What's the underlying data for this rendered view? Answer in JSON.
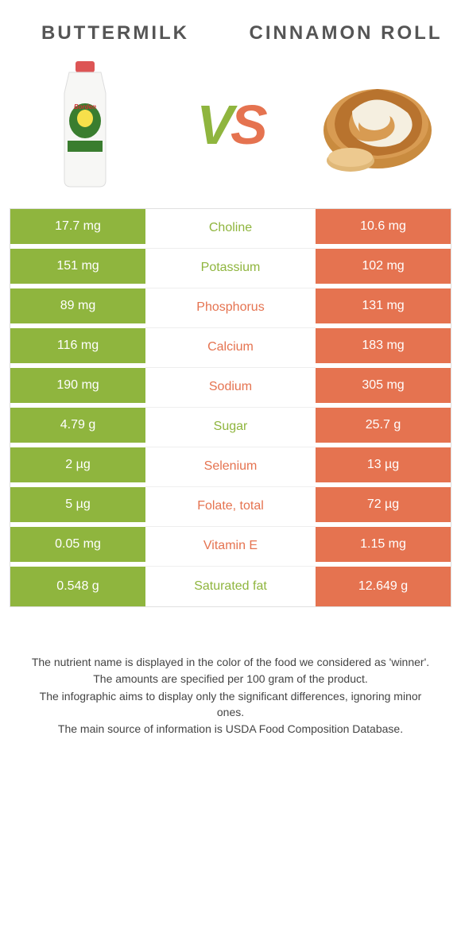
{
  "colors": {
    "green": "#8fb53e",
    "orange": "#e57350",
    "text_gray": "#555555",
    "footnote": "#444444",
    "white": "#ffffff"
  },
  "header": {
    "left": "BUTTERMILK",
    "right": "CINNAMON ROLL"
  },
  "vs": {
    "v": "V",
    "s": "S"
  },
  "rows": [
    {
      "left": "17.7 mg",
      "label": "Choline",
      "right": "10.6 mg",
      "winner": "left"
    },
    {
      "left": "151 mg",
      "label": "Potassium",
      "right": "102 mg",
      "winner": "left"
    },
    {
      "left": "89 mg",
      "label": "Phosphorus",
      "right": "131 mg",
      "winner": "right"
    },
    {
      "left": "116 mg",
      "label": "Calcium",
      "right": "183 mg",
      "winner": "right"
    },
    {
      "left": "190 mg",
      "label": "Sodium",
      "right": "305 mg",
      "winner": "right"
    },
    {
      "left": "4.79 g",
      "label": "Sugar",
      "right": "25.7 g",
      "winner": "left"
    },
    {
      "left": "2 µg",
      "label": "Selenium",
      "right": "13 µg",
      "winner": "right"
    },
    {
      "left": "5 µg",
      "label": "Folate, total",
      "right": "72 µg",
      "winner": "right"
    },
    {
      "left": "0.05 mg",
      "label": "Vitamin E",
      "right": "1.15 mg",
      "winner": "right"
    },
    {
      "left": "0.548 g",
      "label": "Saturated fat",
      "right": "12.649 g",
      "winner": "left"
    }
  ],
  "footnotes": [
    "The nutrient name is displayed in the color of the food we considered as 'winner'.",
    "The amounts are specified per 100 gram of the product.",
    "The infographic aims to display only the significant differences, ignoring minor ones.",
    "The main source of information is USDA Food Composition Database."
  ]
}
